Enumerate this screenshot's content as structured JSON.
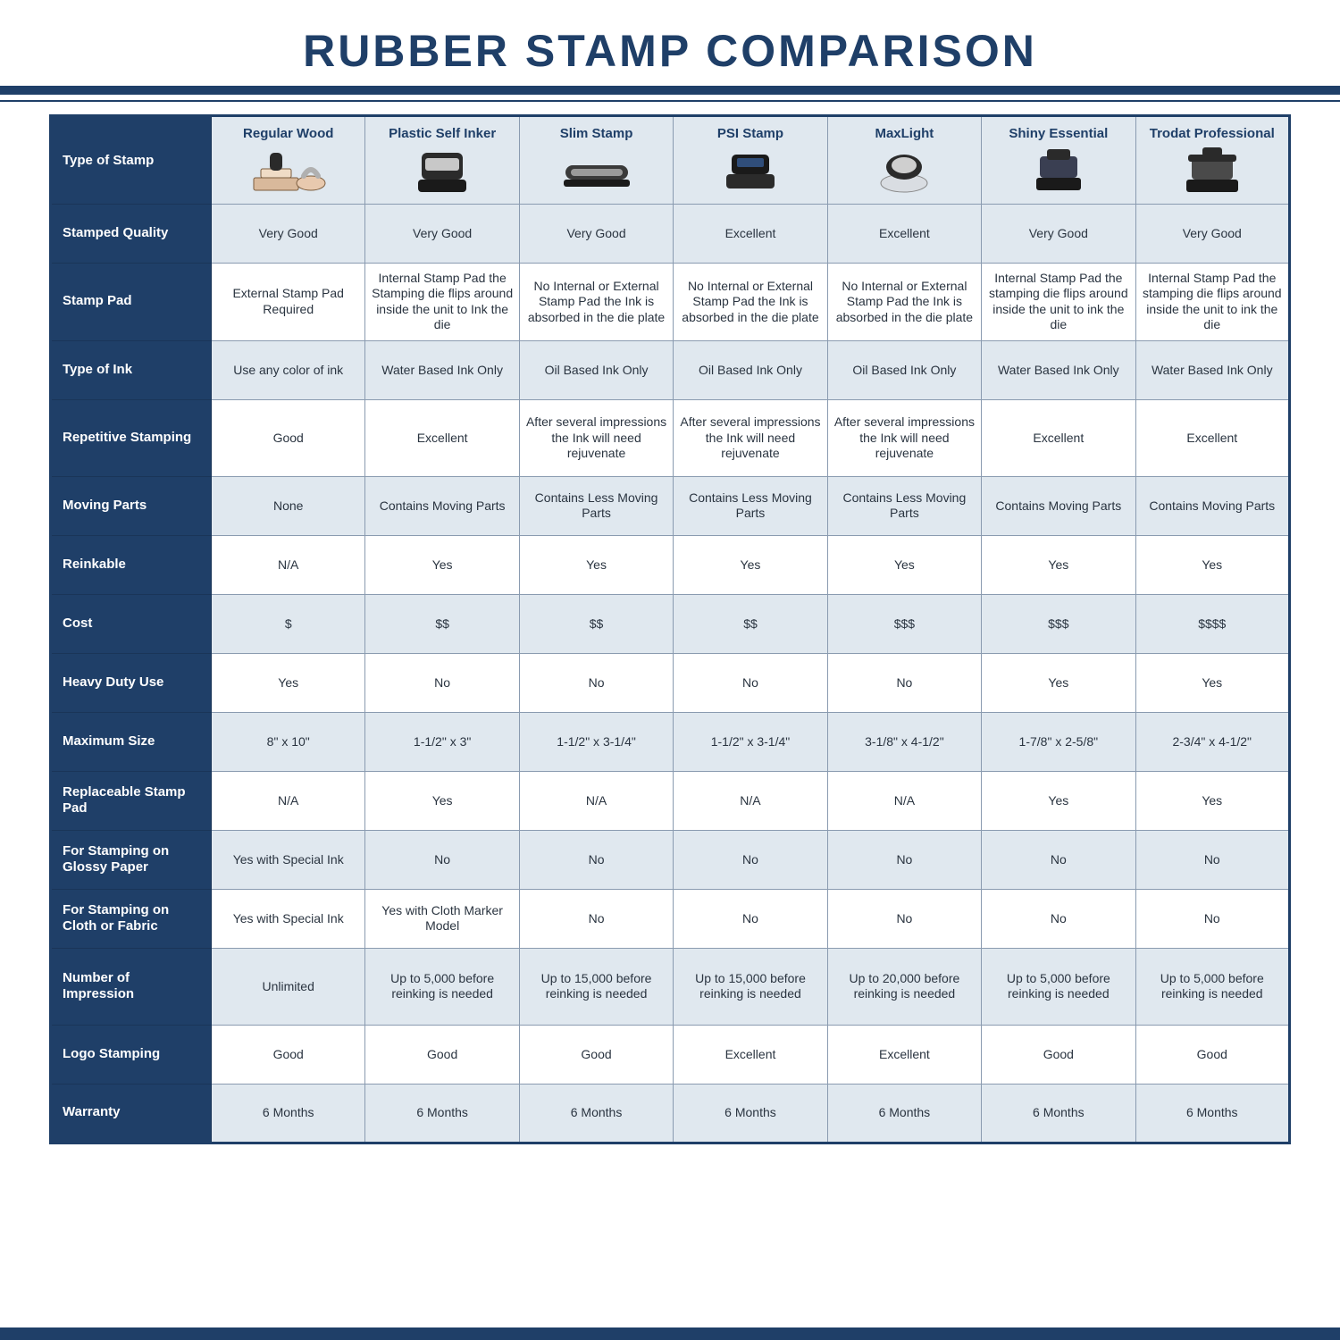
{
  "title": "RUBBER STAMP COMPARISON",
  "colors": {
    "navy": "#1f3f68",
    "row_alt": "#e0e8ef",
    "border": "#8a9bb0",
    "text": "#2a3440",
    "white": "#ffffff"
  },
  "typography": {
    "title_fontsize_pt": 38,
    "header_fontsize_pt": 11,
    "cell_fontsize_pt": 10,
    "font_family": "Arial"
  },
  "table": {
    "corner_label": "Type of Stamp",
    "columns": [
      {
        "label": "Regular Wood",
        "icon": "regular-wood"
      },
      {
        "label": "Plastic Self Inker",
        "icon": "self-inker"
      },
      {
        "label": "Slim Stamp",
        "icon": "slim-stamp"
      },
      {
        "label": "PSI Stamp",
        "icon": "psi-stamp"
      },
      {
        "label": "MaxLight",
        "icon": "maxlight"
      },
      {
        "label": "Shiny Essential",
        "icon": "shiny-essential"
      },
      {
        "label": "Trodat Professional",
        "icon": "trodat-pro"
      }
    ],
    "rows": [
      {
        "label": "Stamped Quality",
        "alt": true,
        "cells": [
          "Very Good",
          "Very Good",
          "Very Good",
          "Excellent",
          "Excellent",
          "Very Good",
          "Very Good"
        ]
      },
      {
        "label": "Stamp Pad",
        "alt": false,
        "tall": true,
        "cells": [
          "External Stamp Pad Required",
          "Internal Stamp Pad the Stamping die flips around inside the unit to Ink the die",
          "No Internal or External Stamp Pad the Ink is absorbed in the die plate",
          "No Internal or External Stamp Pad the Ink is absorbed in the die plate",
          "No Internal or External Stamp Pad the Ink is absorbed in the die plate",
          "Internal Stamp Pad the stamping die flips around inside the unit to ink the die",
          "Internal Stamp Pad the stamping die flips around inside the unit to ink the die"
        ]
      },
      {
        "label": "Type of Ink",
        "alt": true,
        "cells": [
          "Use any color of ink",
          "Water Based Ink Only",
          "Oil Based Ink Only",
          "Oil Based Ink Only",
          "Oil Based Ink Only",
          "Water Based Ink Only",
          "Water Based Ink Only"
        ]
      },
      {
        "label": "Repetitive Stamping",
        "alt": false,
        "tall": true,
        "cells": [
          "Good",
          "Excellent",
          "After several impressions the Ink will need rejuvenate",
          "After several impressions the Ink will need rejuvenate",
          "After several impressions the Ink will need rejuvenate",
          "Excellent",
          "Excellent"
        ]
      },
      {
        "label": "Moving Parts",
        "alt": true,
        "cells": [
          "None",
          "Contains Moving Parts",
          "Contains Less Moving Parts",
          "Contains Less Moving Parts",
          "Contains Less Moving Parts",
          "Contains Moving Parts",
          "Contains Moving Parts"
        ]
      },
      {
        "label": "Reinkable",
        "alt": false,
        "cells": [
          "N/A",
          "Yes",
          "Yes",
          "Yes",
          "Yes",
          "Yes",
          "Yes"
        ]
      },
      {
        "label": "Cost",
        "alt": true,
        "cells": [
          "$",
          "$$",
          "$$",
          "$$",
          "$$$",
          "$$$",
          "$$$$"
        ]
      },
      {
        "label": "Heavy Duty Use",
        "alt": false,
        "cells": [
          "Yes",
          "No",
          "No",
          "No",
          "No",
          "Yes",
          "Yes"
        ]
      },
      {
        "label": "Maximum Size",
        "alt": true,
        "cells": [
          "8\" x 10\"",
          "1-1/2\" x 3\"",
          "1-1/2\" x 3-1/4\"",
          "1-1/2\" x 3-1/4\"",
          "3-1/8\" x 4-1/2\"",
          "1-7/8\" x 2-5/8\"",
          "2-3/4\" x 4-1/2\""
        ]
      },
      {
        "label": "Replaceable Stamp Pad",
        "alt": false,
        "cells": [
          "N/A",
          "Yes",
          "N/A",
          "N/A",
          "N/A",
          "Yes",
          "Yes"
        ]
      },
      {
        "label": "For Stamping on Glossy Paper",
        "alt": true,
        "cells": [
          "Yes with Special Ink",
          "No",
          "No",
          "No",
          "No",
          "No",
          "No"
        ]
      },
      {
        "label": "For Stamping on Cloth or Fabric",
        "alt": false,
        "cells": [
          "Yes with Special Ink",
          "Yes with Cloth Marker Model",
          "No",
          "No",
          "No",
          "No",
          "No"
        ]
      },
      {
        "label": "Number of Impression",
        "alt": true,
        "tall": true,
        "cells": [
          "Unlimited",
          "Up to 5,000 before reinking is needed",
          "Up to 15,000 before reinking is needed",
          "Up to 15,000 before reinking is needed",
          "Up to 20,000 before reinking is needed",
          "Up to 5,000 before reinking is needed",
          "Up to 5,000 before reinking is needed"
        ]
      },
      {
        "label": "Logo Stamping",
        "alt": false,
        "cells": [
          "Good",
          "Good",
          "Good",
          "Excellent",
          "Excellent",
          "Good",
          "Good"
        ]
      },
      {
        "label": "Warranty",
        "alt": true,
        "cells": [
          "6 Months",
          "6 Months",
          "6 Months",
          "6 Months",
          "6 Months",
          "6 Months",
          "6 Months"
        ]
      }
    ]
  }
}
